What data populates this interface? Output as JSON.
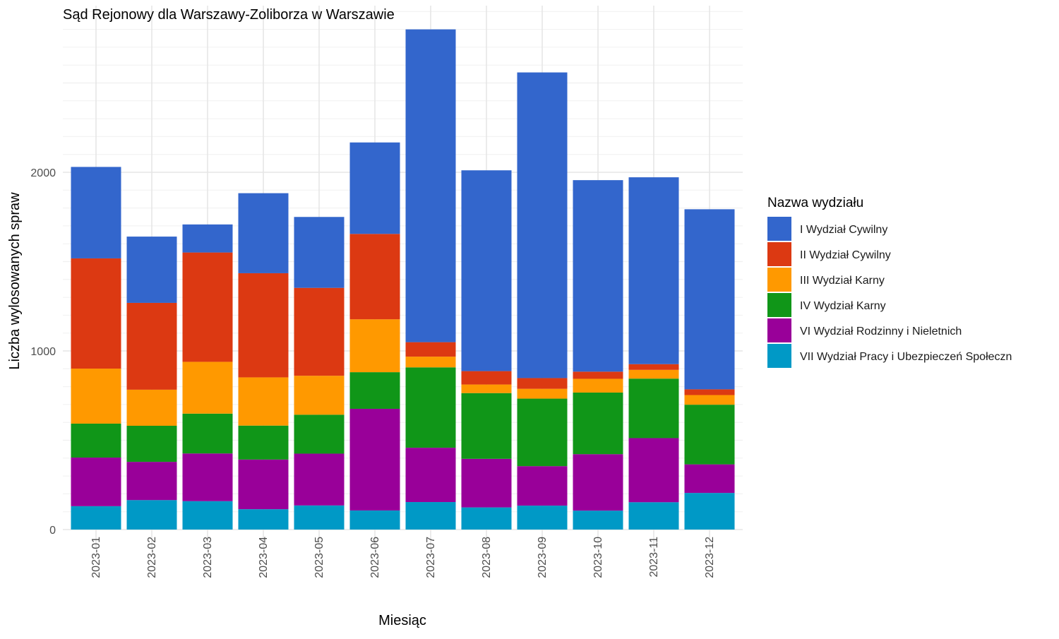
{
  "chart_data": {
    "type": "bar",
    "stacked": true,
    "title": "Sąd Rejonowy dla Warszawy-Zoliborza w Warszawie",
    "xlabel": "Miesiąc",
    "ylabel": "Liczba wylosowanych spraw",
    "ylim": [
      0,
      2900
    ],
    "yticks": [
      0,
      1000,
      2000
    ],
    "ytick_labels": [
      "0",
      "1000",
      "2000"
    ],
    "grid": true,
    "legend_title": "Nazwa wydziału",
    "legend_position": "right",
    "categories": [
      "2023-01",
      "2023-02",
      "2023-03",
      "2023-04",
      "2023-05",
      "2023-06",
      "2023-07",
      "2023-08",
      "2023-09",
      "2023-10",
      "2023-11",
      "2023-12"
    ],
    "series": [
      {
        "name": "VII Wydział Pracy i Ubezpieczeń Społeczn",
        "color": "#0099C6",
        "values": [
          131,
          165,
          159,
          114,
          135,
          107,
          154,
          124,
          134,
          106,
          153,
          205
        ]
      },
      {
        "name": "VI Wydział Rodzinny i Nieletnich",
        "color": "#990099",
        "values": [
          272,
          214,
          267,
          278,
          290,
          569,
          304,
          272,
          221,
          316,
          359,
          160
        ]
      },
      {
        "name": "IV Wydział Karny",
        "color": "#109618",
        "values": [
          190,
          202,
          223,
          190,
          218,
          205,
          450,
          368,
          378,
          345,
          333,
          334
        ]
      },
      {
        "name": "III Wydział Karny",
        "color": "#FF9900",
        "values": [
          308,
          202,
          290,
          270,
          218,
          296,
          60,
          48,
          55,
          77,
          49,
          54
        ]
      },
      {
        "name": "II Wydział Cywilny",
        "color": "#DC3912",
        "values": [
          617,
          486,
          612,
          583,
          492,
          478,
          81,
          75,
          60,
          40,
          32,
          32
        ]
      },
      {
        "name": "I Wydział Cywilny",
        "color": "#3366CC",
        "values": [
          512,
          371,
          157,
          448,
          397,
          512,
          1751,
          1124,
          1711,
          1072,
          1046,
          1008
        ]
      }
    ],
    "legend_order": [
      "I Wydział Cywilny",
      "II Wydział Cywilny",
      "III Wydział Karny",
      "IV Wydział Karny",
      "VI Wydział Rodzinny i Nieletnich",
      "VII Wydział Pracy i Ubezpieczeń Społeczn"
    ]
  }
}
